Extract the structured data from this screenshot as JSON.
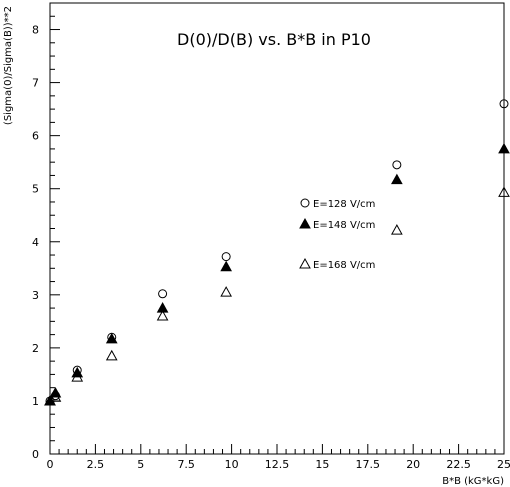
{
  "chart_data": {
    "type": "scatter",
    "title": "D(0)/D(B) vs. B*B in P10",
    "xlabel": "B*B (kG*kG)",
    "ylabel": "(Sigma(0)/Sigma(B))**2",
    "xlim": [
      0,
      25
    ],
    "ylim": [
      0,
      8.5
    ],
    "x_ticks": [
      "0",
      "2.5",
      "5",
      "7.5",
      "10",
      "12.5",
      "15",
      "17.5",
      "20",
      "22.5",
      "25"
    ],
    "y_ticks": [
      "0",
      "1",
      "2",
      "3",
      "4",
      "5",
      "6",
      "7",
      "8"
    ],
    "grid": false,
    "legend_position": "right-middle",
    "series": [
      {
        "name": "E=128 V/cm",
        "marker": "open-circle",
        "x": [
          0.0,
          0.3,
          1.5,
          3.4,
          6.2,
          9.7,
          19.1,
          25.0
        ],
        "y": [
          1.0,
          1.1,
          1.58,
          2.2,
          3.02,
          3.72,
          5.45,
          6.6
        ]
      },
      {
        "name": "E=148 V/cm",
        "marker": "filled-triangle",
        "x": [
          0.0,
          0.3,
          1.5,
          3.4,
          6.2,
          9.7,
          19.1,
          25.0
        ],
        "y": [
          1.0,
          1.15,
          1.53,
          2.17,
          2.75,
          3.53,
          5.17,
          5.75
        ]
      },
      {
        "name": "E=168 V/cm",
        "marker": "open-triangle",
        "x": [
          0.0,
          0.3,
          1.5,
          3.4,
          6.2,
          9.7,
          19.1,
          25.0
        ],
        "y": [
          1.0,
          1.07,
          1.45,
          1.85,
          2.6,
          3.05,
          4.22,
          4.93
        ]
      }
    ]
  }
}
